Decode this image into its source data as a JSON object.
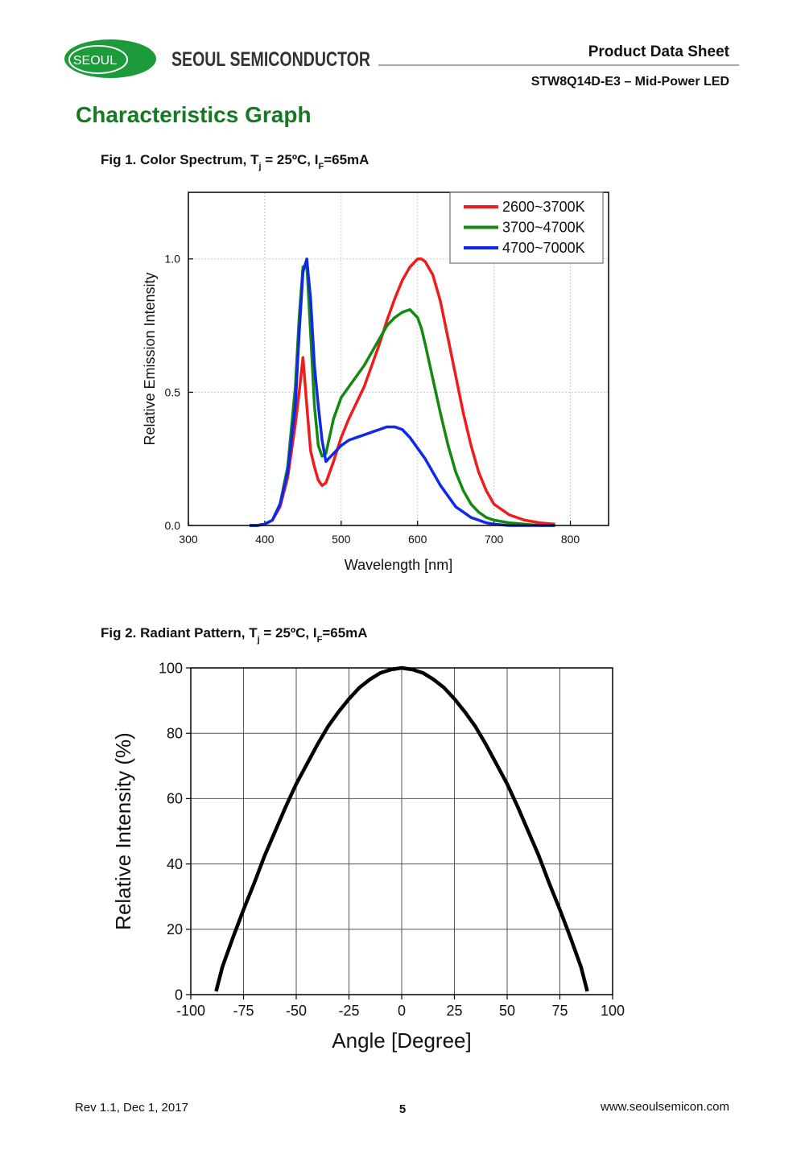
{
  "header": {
    "logo": "SEOUL",
    "company": "SEOUL SEMICONDUCTOR",
    "doc_type": "Product Data Sheet",
    "product": "STW8Q14D-E3 – Mid-Power LED"
  },
  "section_title": "Characteristics Graph",
  "chart_data": [
    {
      "type": "line",
      "title": [
        "Fig 1. Color Spectrum, T",
        "j",
        " = 25ºC,  I",
        "F",
        "=65mA"
      ],
      "x_label": "Wavelength [nm]",
      "y_label": "Relative Emission Intensity",
      "xlim": [
        300,
        850
      ],
      "ylim": [
        0,
        1.25
      ],
      "xticks": [
        300,
        400,
        500,
        600,
        700,
        800
      ],
      "yticks": [
        {
          "value": 0,
          "label": "0.0"
        },
        0.5,
        {
          "value": 1,
          "label": "1.0"
        }
      ],
      "grid": true,
      "legend": "upper right",
      "x": [
        380,
        390,
        400,
        410,
        420,
        430,
        440,
        445,
        450,
        455,
        460,
        465,
        470,
        475,
        480,
        490,
        500,
        510,
        520,
        530,
        540,
        550,
        560,
        570,
        580,
        590,
        600,
        605,
        610,
        620,
        630,
        640,
        650,
        660,
        670,
        680,
        690,
        700,
        720,
        740,
        760,
        780
      ],
      "series": [
        {
          "name": "2600~3700K",
          "color": "#ee1c1c",
          "values": [
            0,
            0,
            0.005,
            0.02,
            0.07,
            0.18,
            0.38,
            0.5,
            0.63,
            0.45,
            0.28,
            0.22,
            0.17,
            0.15,
            0.16,
            0.24,
            0.33,
            0.4,
            0.46,
            0.52,
            0.6,
            0.68,
            0.77,
            0.85,
            0.92,
            0.97,
            1.0,
            1.0,
            0.99,
            0.94,
            0.84,
            0.7,
            0.56,
            0.42,
            0.3,
            0.2,
            0.13,
            0.08,
            0.04,
            0.02,
            0.01,
            0.005
          ]
        },
        {
          "name": "3700~4700K",
          "color": "#128a12",
          "values": [
            0,
            0,
            0.005,
            0.02,
            0.08,
            0.22,
            0.52,
            0.78,
            0.97,
            0.98,
            0.72,
            0.45,
            0.3,
            0.26,
            0.27,
            0.4,
            0.48,
            0.52,
            0.56,
            0.6,
            0.65,
            0.7,
            0.75,
            0.78,
            0.8,
            0.81,
            0.78,
            0.74,
            0.68,
            0.55,
            0.42,
            0.3,
            0.2,
            0.13,
            0.08,
            0.05,
            0.03,
            0.02,
            0.01,
            0.005,
            0,
            0
          ]
        },
        {
          "name": "4700~7000K",
          "color": "#1028e8",
          "values": [
            0,
            0,
            0.005,
            0.02,
            0.08,
            0.2,
            0.45,
            0.72,
            0.95,
            1.0,
            0.85,
            0.6,
            0.45,
            0.32,
            0.24,
            0.27,
            0.3,
            0.32,
            0.33,
            0.34,
            0.35,
            0.36,
            0.37,
            0.37,
            0.36,
            0.33,
            0.29,
            0.27,
            0.25,
            0.2,
            0.15,
            0.11,
            0.07,
            0.05,
            0.03,
            0.02,
            0.01,
            0.005,
            0,
            0,
            0,
            0
          ]
        }
      ]
    },
    {
      "type": "line",
      "title": [
        "Fig 2. Radiant Pattern, T",
        "j",
        " = 25ºC,  I",
        "F",
        "=65mA"
      ],
      "x_label": "Angle [Degree]",
      "y_label": "Relative Intensity (%)",
      "xlim": [
        -100,
        100
      ],
      "ylim": [
        0,
        100
      ],
      "xticks": [
        -100,
        -75,
        -50,
        -25,
        0,
        25,
        50,
        75,
        100
      ],
      "yticks": [
        0,
        20,
        40,
        60,
        80,
        100
      ],
      "grid": true,
      "x": [
        -88,
        -85,
        -80,
        -75,
        -70,
        -65,
        -60,
        -55,
        -50,
        -45,
        -40,
        -35,
        -30,
        -25,
        -20,
        -15,
        -10,
        -5,
        0,
        5,
        10,
        15,
        20,
        25,
        30,
        35,
        40,
        45,
        50,
        55,
        60,
        65,
        70,
        75,
        80,
        85,
        88
      ],
      "series": [
        {
          "color": "#000000",
          "values": [
            1,
            8.5,
            17.5,
            26,
            34,
            42.5,
            50,
            57.5,
            64.5,
            70.5,
            76.5,
            82,
            86.5,
            90.5,
            94,
            96.5,
            98.5,
            99.5,
            100,
            99.5,
            98.5,
            96.5,
            94,
            90.5,
            86.5,
            82,
            76.5,
            70.5,
            64.5,
            57.5,
            50,
            42.5,
            34,
            26,
            17.5,
            8.5,
            1
          ]
        }
      ]
    }
  ],
  "footer": {
    "revision": "Rev 1.1, Dec 1, 2017",
    "page": "5",
    "website": "www.seoulsemicon.com"
  }
}
